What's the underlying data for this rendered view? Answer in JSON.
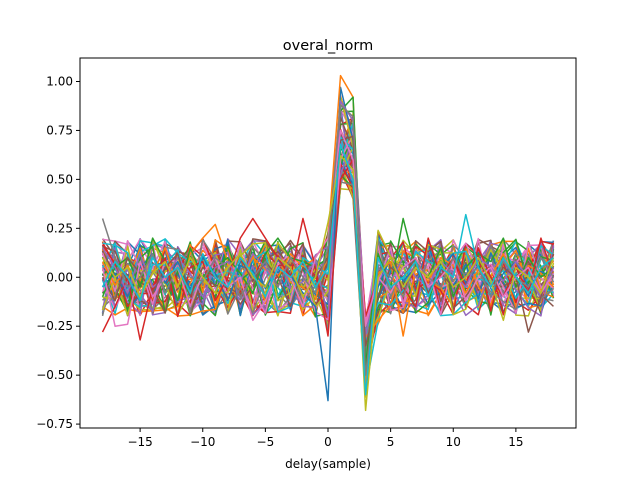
{
  "chart_data": {
    "type": "line",
    "title": "overal_norm",
    "xlabel": "delay(sample)",
    "ylabel": "",
    "xlim": [
      -19.8,
      19.8
    ],
    "ylim": [
      -0.77,
      1.12
    ],
    "x_ticks": [
      -15,
      -10,
      -5,
      0,
      5,
      10,
      15
    ],
    "x_tick_labels": [
      "−15",
      "−10",
      "−5",
      "0",
      "5",
      "10",
      "15"
    ],
    "y_ticks": [
      -0.75,
      -0.5,
      -0.25,
      0.0,
      0.25,
      0.5,
      0.75,
      1.0
    ],
    "y_tick_labels": [
      "−0.75",
      "−0.50",
      "−0.25",
      "0.00",
      "0.25",
      "0.50",
      "0.75",
      "1.00"
    ],
    "x": [
      -18,
      -17,
      -16,
      -15,
      -14,
      -13,
      -12,
      -11,
      -10,
      -9,
      -8,
      -7,
      -6,
      -5,
      -4,
      -3,
      -2,
      -1,
      0,
      1,
      2,
      3,
      4,
      5,
      6,
      7,
      8,
      9,
      10,
      11,
      12,
      13,
      14,
      15,
      16,
      17,
      18
    ],
    "grid": false,
    "legend": "none",
    "series_count": 60,
    "noise_amplitude": 0.22,
    "palette": [
      "#1f77b4",
      "#ff7f0e",
      "#2ca02c",
      "#d62728",
      "#9467bd",
      "#8c564b",
      "#e377c2",
      "#7f7f7f",
      "#bcbd22",
      "#17becf"
    ],
    "series": [
      {
        "values": [
          -0.05,
          0.02,
          -0.1,
          0.05,
          0.12,
          -0.03,
          0.08,
          -0.06,
          0.1,
          0.02,
          -0.12,
          0.06,
          0.03,
          -0.05,
          0.09,
          0.01,
          -0.08,
          -0.15,
          -0.63,
          0.97,
          0.7,
          -0.48,
          -0.05,
          0.1,
          -0.02,
          0.05,
          -0.08,
          0.04,
          0.12,
          -0.03,
          0.06,
          -0.1,
          0.02,
          0.08,
          -0.05,
          0.03,
          0.0
        ]
      },
      {
        "values": [
          0.08,
          -0.04,
          0.06,
          -0.1,
          0.02,
          0.15,
          -0.05,
          0.12,
          0.2,
          0.27,
          0.08,
          -0.02,
          0.1,
          0.04,
          0.0,
          0.12,
          0.05,
          0.1,
          0.2,
          1.03,
          0.92,
          -0.55,
          0.02,
          0.08,
          -0.3,
          0.05,
          -0.02,
          0.1,
          0.06,
          -0.08,
          0.04,
          0.0,
          0.12,
          -0.04,
          0.06,
          0.02,
          -0.05
        ]
      },
      {
        "values": [
          -0.1,
          0.05,
          0.1,
          -0.05,
          0.2,
          0.08,
          -0.12,
          0.15,
          0.0,
          0.05,
          0.1,
          0.02,
          -0.08,
          0.12,
          0.2,
          0.1,
          0.08,
          0.05,
          0.1,
          0.85,
          0.92,
          -0.45,
          0.12,
          -0.05,
          0.3,
          0.05,
          0.0,
          0.15,
          -0.1,
          0.05,
          0.12,
          0.08,
          0.2,
          -0.05,
          0.1,
          0.0,
          0.05
        ]
      },
      {
        "values": [
          -0.28,
          -0.15,
          0.0,
          -0.32,
          -0.05,
          0.1,
          -0.2,
          0.05,
          0.08,
          -0.12,
          0.0,
          0.2,
          0.3,
          0.2,
          0.1,
          0.0,
          0.3,
          0.05,
          -0.3,
          0.5,
          0.6,
          -0.2,
          0.0,
          0.1,
          -0.05,
          -0.15,
          0.2,
          0.0,
          0.1,
          -0.05,
          0.15,
          0.0,
          -0.1,
          0.05,
          -0.08,
          0.2,
          0.0
        ]
      },
      {
        "values": [
          0.15,
          0.05,
          -0.08,
          0.12,
          -0.05,
          0.0,
          0.1,
          0.02,
          -0.1,
          0.05,
          0.08,
          -0.02,
          0.12,
          0.05,
          -0.05,
          0.1,
          0.0,
          0.08,
          -0.2,
          0.9,
          0.8,
          -0.3,
          0.05,
          -0.02,
          0.1,
          0.0,
          -0.05,
          0.08,
          0.02,
          -0.05,
          0.1,
          0.05,
          -0.02,
          0.08,
          0.0,
          -0.1,
          0.05
        ]
      },
      {
        "values": [
          0.0,
          -0.12,
          0.1,
          0.02,
          -0.08,
          0.05,
          0.12,
          -0.1,
          0.05,
          0.0,
          -0.05,
          0.1,
          -0.02,
          0.08,
          0.0,
          -0.15,
          0.05,
          0.0,
          0.1,
          0.7,
          0.72,
          -0.35,
          -0.1,
          0.05,
          0.0,
          0.1,
          -0.08,
          0.02,
          -0.05,
          0.0,
          0.1,
          -0.05,
          0.05,
          0.0,
          -0.28,
          -0.1,
          0.12
        ]
      },
      {
        "values": [
          0.05,
          -0.25,
          -0.24,
          0.08,
          -0.1,
          0.0,
          0.05,
          -0.15,
          0.02,
          0.1,
          -0.05,
          0.0,
          -0.22,
          -0.12,
          0.05,
          0.0,
          -0.15,
          0.1,
          0.2,
          0.75,
          0.6,
          -0.25,
          0.0,
          -0.08,
          0.05,
          0.1,
          -0.05,
          0.0,
          0.08,
          -0.12,
          0.0,
          0.05,
          -0.1,
          0.0,
          0.05,
          -0.08,
          0.02
        ]
      },
      {
        "values": [
          0.3,
          0.1,
          -0.05,
          0.0,
          0.12,
          -0.08,
          0.05,
          0.0,
          -0.02,
          0.1,
          0.05,
          -0.1,
          0.0,
          0.08,
          -0.05,
          0.1,
          0.0,
          -0.08,
          0.15,
          0.88,
          0.82,
          -0.5,
          0.05,
          0.0,
          -0.1,
          0.08,
          0.0,
          -0.05,
          0.1,
          0.0,
          0.05,
          -0.1,
          0.08,
          0.0,
          -0.05,
          0.1,
          0.0
        ]
      },
      {
        "values": [
          0.1,
          0.0,
          0.05,
          -0.1,
          0.02,
          0.08,
          -0.05,
          0.1,
          0.0,
          -0.08,
          0.05,
          0.12,
          0.0,
          -0.05,
          0.1,
          0.05,
          -0.1,
          0.0,
          0.28,
          0.62,
          0.55,
          -0.68,
          0.0,
          0.1,
          -0.05,
          0.05,
          0.0,
          0.08,
          -0.05,
          0.0,
          0.1,
          -0.02,
          -0.22,
          0.05,
          0.0,
          -0.08,
          0.1
        ]
      },
      {
        "values": [
          -0.05,
          0.08,
          0.0,
          -0.12,
          0.1,
          0.0,
          0.05,
          -0.08,
          0.12,
          0.0,
          -0.05,
          0.1,
          0.02,
          -0.1,
          0.05,
          0.0,
          0.08,
          -0.05,
          0.05,
          0.68,
          0.5,
          -0.6,
          0.1,
          -0.05,
          0.0,
          0.08,
          -0.1,
          0.05,
          0.0,
          0.32,
          0.05,
          -0.05,
          0.1,
          0.0,
          -0.08,
          0.05,
          0.1
        ]
      }
    ]
  }
}
